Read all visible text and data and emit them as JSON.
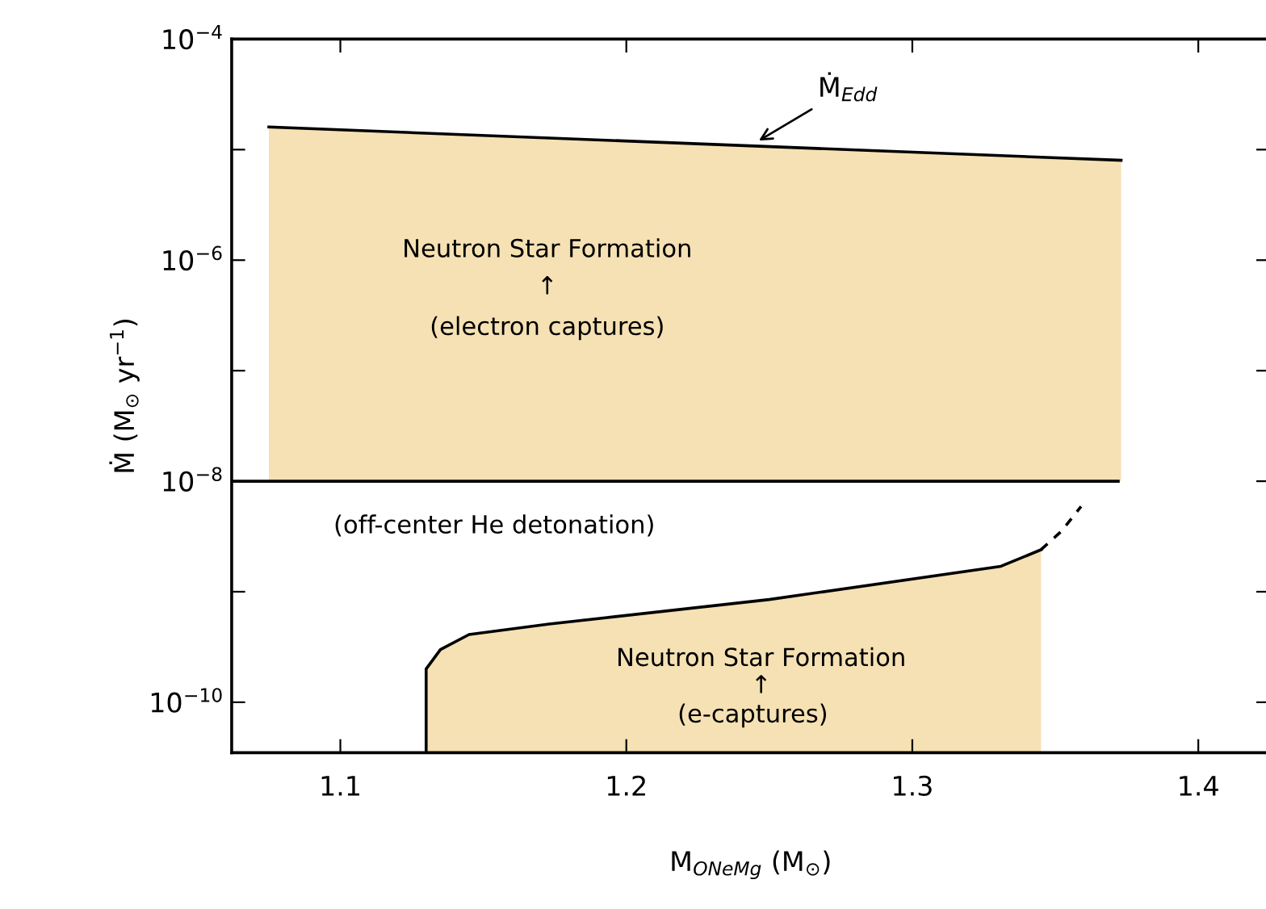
{
  "chart_data": {
    "type": "line",
    "xlabel": "M$_{ONeMg}$ (M$_{⊙}$)",
    "ylabel": "Ṁ (M$_{⊙}$ yr$^{−1}$)",
    "log": "y",
    "grid": false,
    "marker": "none",
    "xlim": [
      1.062,
      1.425
    ],
    "xticks": [
      {
        "value": 1.1,
        "label": "1.1"
      },
      {
        "value": 1.2,
        "label": "1.2"
      },
      {
        "value": 1.3,
        "label": "1.3"
      },
      {
        "value": 1.4,
        "label": "1.4"
      }
    ],
    "ylim": [
      3.5e-11,
      0.0001
    ],
    "yticks": [
      {
        "value": 0.0001,
        "label": "10$^{−4}$"
      },
      {
        "value": 1e-05,
        "label": null
      },
      {
        "value": 1e-06,
        "label": "10$^{−6}$"
      },
      {
        "value": 1e-07,
        "label": null
      },
      {
        "value": 1e-08,
        "label": "10$^{−8}$"
      },
      {
        "value": 1e-09,
        "label": null
      },
      {
        "value": 1e-10,
        "label": "10$^{−10}$"
      }
    ],
    "series": [
      {
        "color": "#000000",
        "line_style": "solid",
        "x": [
          1.075,
          1.373
        ],
        "values": [
          1.6e-05,
          8e-06
        ],
        "lower": [
          1e-08,
          1e-08
        ],
        "upper": [
          1.6e-05,
          8e-06
        ]
      },
      {
        "color": "#000000",
        "line_style": "solid",
        "x": [
          1.062,
          1.372
        ],
        "values": [
          1e-08,
          1e-08
        ]
      },
      {
        "color": "#000000",
        "line_style": "solid",
        "x": [
          1.13,
          1.13,
          1.135,
          1.145,
          1.173,
          1.25,
          1.331,
          1.345
        ],
        "values": [
          3.5e-11,
          2e-10,
          3e-10,
          4.1e-10,
          5.1e-10,
          8.5e-10,
          1.7e-09,
          2.4e-09
        ],
        "lower": [
          3.5e-11,
          3.5e-11,
          3.5e-11,
          3.5e-11,
          3.5e-11,
          3.5e-11,
          3.5e-11,
          3.5e-11
        ],
        "upper": [
          3.5e-11,
          2e-10,
          3e-10,
          4.1e-10,
          5.1e-10,
          8.5e-10,
          1.7e-09,
          2.4e-09
        ]
      },
      {
        "color": "#000000",
        "line_style": "dashed",
        "x": [
          1.345,
          1.352,
          1.359
        ],
        "values": [
          2.4e-09,
          3.5e-09,
          5.9e-09
        ]
      }
    ],
    "annotations": [
      {
        "text": "Ṁ$_{Edd}$",
        "x": 1.245,
        "y": 1.15e-05
      },
      "Neutron Star Formation",
      "↑",
      "(electron captures)",
      "(off-center He detonation)",
      "Neutron Star Formation",
      "↑",
      "(e-captures)"
    ]
  }
}
